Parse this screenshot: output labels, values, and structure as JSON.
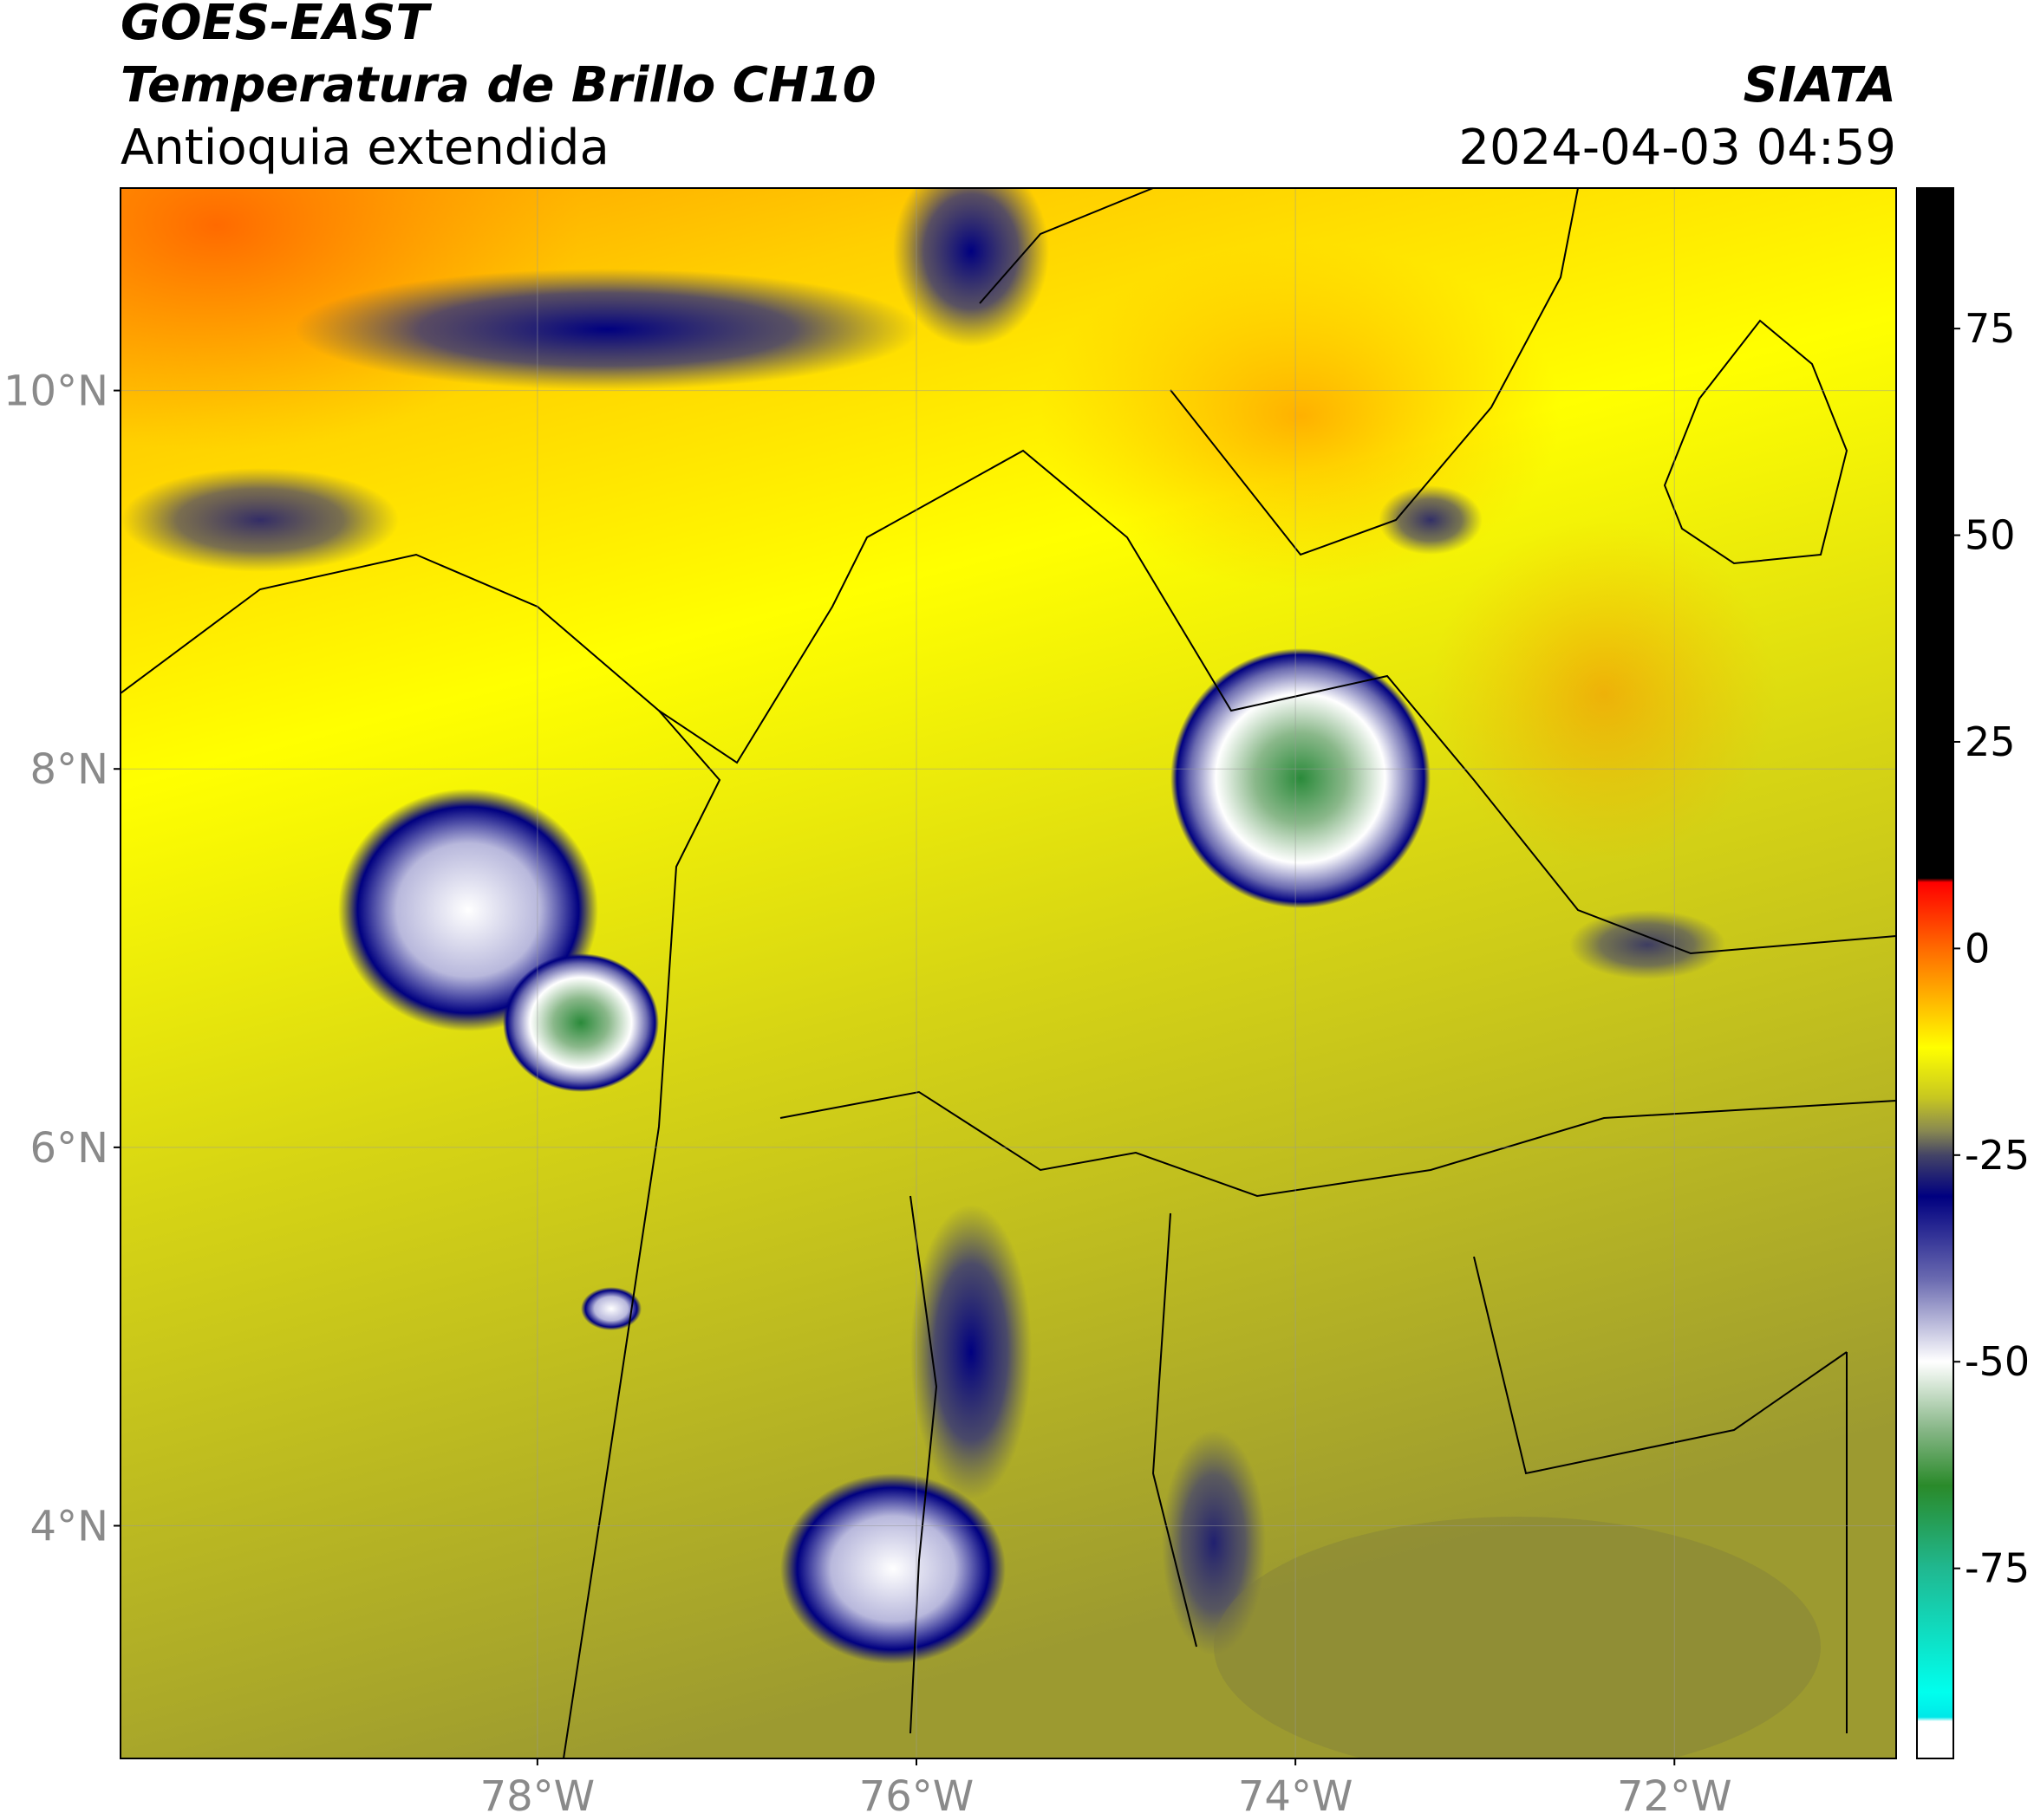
{
  "header": {
    "title": "GOES-EAST",
    "subtitle": "Temperatura de Brillo CH10",
    "region": "Antioquia extendida",
    "source": "SIATA",
    "datetime": "2024-04-03 04:59"
  },
  "map": {
    "xlim": [
      -80.2,
      -70.83
    ],
    "ylim": [
      2.77,
      11.07
    ],
    "xticks": [
      {
        "value": -78,
        "label": "78°W"
      },
      {
        "value": -76,
        "label": "76°W"
      },
      {
        "value": -74,
        "label": "74°W"
      },
      {
        "value": -72,
        "label": "72°W"
      }
    ],
    "yticks": [
      {
        "value": 4,
        "label": "4°N"
      },
      {
        "value": 6,
        "label": "6°N"
      },
      {
        "value": 8,
        "label": "8°N"
      },
      {
        "value": 10,
        "label": "10°N"
      }
    ],
    "grid": true
  },
  "colorbar": {
    "lim": [
      -98,
      92
    ],
    "ticks": [
      75,
      50,
      25,
      0,
      -25,
      -50,
      -75
    ],
    "stops": [
      {
        "value": 92,
        "color": "#000000"
      },
      {
        "value": 8.5,
        "color": "#000000"
      },
      {
        "value": 8,
        "color": "#ff0000"
      },
      {
        "value": 0,
        "color": "#ff6a00"
      },
      {
        "value": -8,
        "color": "#ffcc00"
      },
      {
        "value": -12,
        "color": "#ffff00"
      },
      {
        "value": -18,
        "color": "#c8c820"
      },
      {
        "value": -22,
        "color": "#8a8a50"
      },
      {
        "value": -25,
        "color": "#444466"
      },
      {
        "value": -30,
        "color": "#000080"
      },
      {
        "value": -40,
        "color": "#6a6ab0"
      },
      {
        "value": -50,
        "color": "#ffffff"
      },
      {
        "value": -58,
        "color": "#8ab88a"
      },
      {
        "value": -65,
        "color": "#2a8a2a"
      },
      {
        "value": -75,
        "color": "#20b890"
      },
      {
        "value": -90,
        "color": "#00ffee"
      },
      {
        "value": -93,
        "color": "#00e8e8"
      },
      {
        "value": -93.5,
        "color": "#ffffff"
      },
      {
        "value": -98,
        "color": "#ffffff"
      }
    ]
  }
}
